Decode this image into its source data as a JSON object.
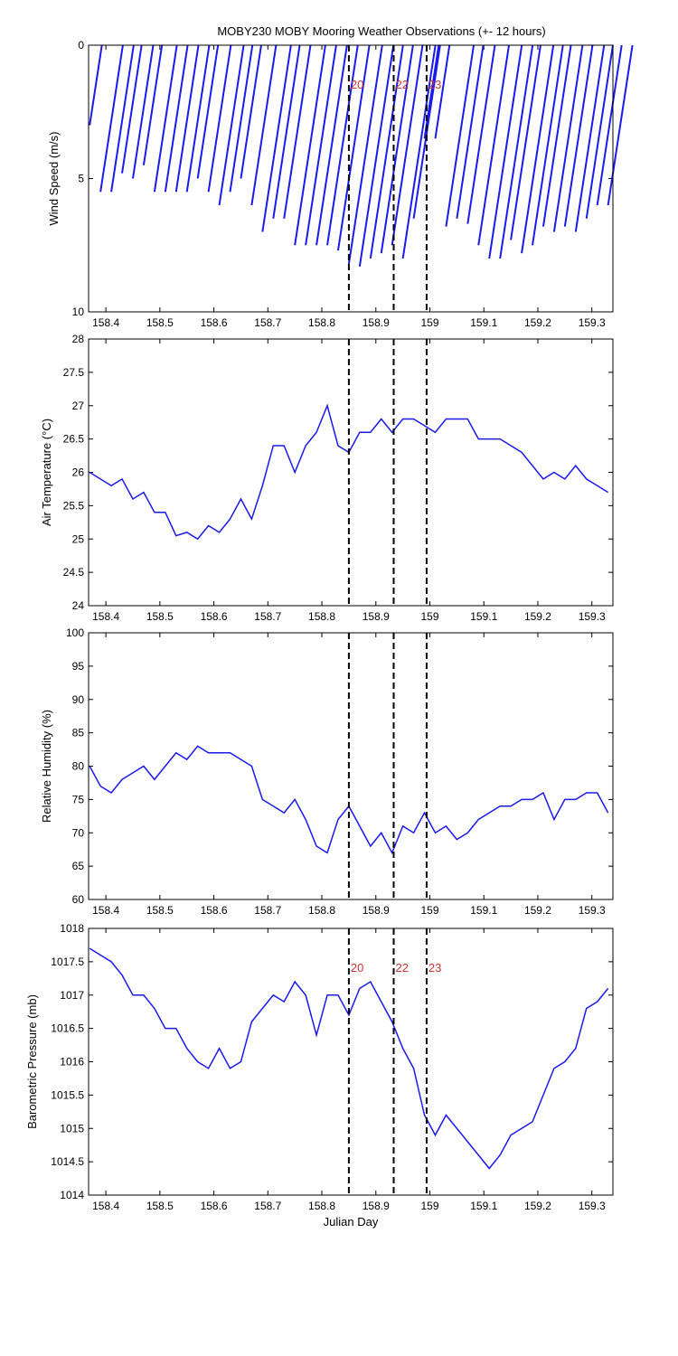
{
  "markers": [
    {
      "x": 158.85,
      "label": "20"
    },
    {
      "x": 158.933,
      "label": "22"
    },
    {
      "x": 158.994,
      "label": "23"
    }
  ],
  "marker_color": "#cc3333",
  "chart_data": [
    {
      "type": "stick",
      "title": "MOBY230 MOBY Mooring Weather Observations (+- 12 hours)",
      "y_label": "Wind Speed (m/s)",
      "color": "#1a1aee",
      "x": [
        158.37,
        158.39,
        158.41,
        158.43,
        158.45,
        158.47,
        158.49,
        158.51,
        158.53,
        158.55,
        158.57,
        158.59,
        158.61,
        158.63,
        158.65,
        158.67,
        158.69,
        158.71,
        158.73,
        158.75,
        158.77,
        158.79,
        158.81,
        158.83,
        158.85,
        158.87,
        158.89,
        158.91,
        158.93,
        158.95,
        158.97,
        158.99,
        159.01,
        159.03,
        159.05,
        159.07,
        159.09,
        159.11,
        159.13,
        159.15,
        159.17,
        159.19,
        159.21,
        159.23,
        159.25,
        159.27,
        159.29,
        159.31,
        159.33
      ],
      "values": [
        3,
        5.5,
        5.5,
        4.8,
        5,
        4.5,
        5.5,
        5.5,
        5.5,
        5.5,
        5,
        5.5,
        6,
        5.5,
        5,
        6,
        7,
        6.5,
        6.5,
        7.5,
        7.5,
        7.5,
        7.5,
        7.7,
        8.2,
        8.3,
        8,
        7.8,
        7.5,
        8,
        6.5,
        3.5,
        3.5,
        6.8,
        6.5,
        6.7,
        7.5,
        8,
        8,
        7.3,
        7.8,
        7.5,
        6.8,
        7,
        6.8,
        7,
        6.5,
        6,
        6
      ],
      "xlim": [
        158.368,
        159.339
      ],
      "xticks": [
        158.4,
        158.5,
        158.6,
        158.7,
        158.8,
        158.9,
        159,
        159.1,
        159.2,
        159.3
      ],
      "ylim": [
        0,
        10
      ],
      "y_inverted": true,
      "yticks": [
        0,
        5,
        10
      ]
    },
    {
      "type": "line",
      "y_label": "Air Temperature (°C)",
      "color": "#1a1aee",
      "x": [
        158.37,
        158.39,
        158.41,
        158.43,
        158.45,
        158.47,
        158.49,
        158.51,
        158.53,
        158.55,
        158.57,
        158.59,
        158.61,
        158.63,
        158.65,
        158.67,
        158.69,
        158.71,
        158.73,
        158.75,
        158.77,
        158.79,
        158.81,
        158.83,
        158.85,
        158.87,
        158.89,
        158.91,
        158.93,
        158.95,
        158.97,
        158.99,
        159.01,
        159.03,
        159.05,
        159.07,
        159.09,
        159.11,
        159.13,
        159.15,
        159.17,
        159.19,
        159.21,
        159.23,
        159.25,
        159.27,
        159.29,
        159.31,
        159.33
      ],
      "values": [
        26.0,
        25.9,
        25.8,
        25.9,
        25.6,
        25.7,
        25.4,
        25.4,
        25.05,
        25.1,
        25.0,
        25.2,
        25.1,
        25.3,
        25.6,
        25.3,
        25.8,
        26.4,
        26.4,
        26.0,
        26.4,
        26.6,
        27.0,
        26.4,
        26.3,
        26.6,
        26.6,
        26.8,
        26.6,
        26.8,
        26.8,
        26.7,
        26.6,
        26.8,
        26.8,
        26.8,
        26.5,
        26.5,
        26.5,
        26.4,
        26.3,
        26.1,
        25.9,
        26.0,
        25.9,
        26.1,
        25.9,
        25.8,
        25.7
      ],
      "xlim": [
        158.368,
        159.339
      ],
      "xticks": [
        158.4,
        158.5,
        158.6,
        158.7,
        158.8,
        158.9,
        159,
        159.1,
        159.2,
        159.3
      ],
      "ylim": [
        24,
        28
      ],
      "yticks": [
        24,
        24.5,
        25,
        25.5,
        26,
        26.5,
        27,
        27.5,
        28
      ]
    },
    {
      "type": "line",
      "y_label": "Relative Humidity (%)",
      "color": "#1a1aee",
      "x": [
        158.37,
        158.39,
        158.41,
        158.43,
        158.45,
        158.47,
        158.49,
        158.51,
        158.53,
        158.55,
        158.57,
        158.59,
        158.61,
        158.63,
        158.65,
        158.67,
        158.69,
        158.71,
        158.73,
        158.75,
        158.77,
        158.79,
        158.81,
        158.83,
        158.85,
        158.87,
        158.89,
        158.91,
        158.93,
        158.95,
        158.97,
        158.99,
        159.01,
        159.03,
        159.05,
        159.07,
        159.09,
        159.11,
        159.13,
        159.15,
        159.17,
        159.19,
        159.21,
        159.23,
        159.25,
        159.27,
        159.29,
        159.31,
        159.33
      ],
      "values": [
        80,
        77,
        76,
        78,
        79,
        80,
        78,
        80,
        82,
        81,
        83,
        82,
        82,
        82,
        81,
        80,
        75,
        74,
        73,
        75,
        72,
        68,
        67,
        72,
        74,
        71,
        68,
        70,
        67,
        71,
        70,
        73,
        70,
        71,
        69,
        70,
        72,
        73,
        74,
        74,
        75,
        75,
        76,
        72,
        75,
        75,
        76,
        76,
        73
      ],
      "xlim": [
        158.368,
        159.339
      ],
      "xticks": [
        158.4,
        158.5,
        158.6,
        158.7,
        158.8,
        158.9,
        159,
        159.1,
        159.2,
        159.3
      ],
      "ylim": [
        60,
        100
      ],
      "yticks": [
        60,
        65,
        70,
        75,
        80,
        85,
        90,
        95,
        100
      ]
    },
    {
      "type": "line",
      "y_label": "Barometric Pressure (mb)",
      "x_label": "Julian Day",
      "color": "#1a1aee",
      "x": [
        158.37,
        158.39,
        158.41,
        158.43,
        158.45,
        158.47,
        158.49,
        158.51,
        158.53,
        158.55,
        158.57,
        158.59,
        158.61,
        158.63,
        158.65,
        158.67,
        158.69,
        158.71,
        158.73,
        158.75,
        158.77,
        158.79,
        158.81,
        158.83,
        158.85,
        158.87,
        158.89,
        158.91,
        158.93,
        158.95,
        158.97,
        158.99,
        159.01,
        159.03,
        159.05,
        159.07,
        159.09,
        159.11,
        159.13,
        159.15,
        159.17,
        159.19,
        159.21,
        159.23,
        159.25,
        159.27,
        159.29,
        159.31,
        159.33
      ],
      "values": [
        1017.7,
        1017.6,
        1017.5,
        1017.3,
        1017.0,
        1017.0,
        1016.8,
        1016.5,
        1016.5,
        1016.2,
        1016.0,
        1015.9,
        1016.2,
        1015.9,
        1016.0,
        1016.6,
        1016.8,
        1017.0,
        1016.9,
        1017.2,
        1017.0,
        1016.4,
        1017.0,
        1017.0,
        1016.7,
        1017.1,
        1017.2,
        1016.9,
        1016.6,
        1016.2,
        1015.9,
        1015.2,
        1014.9,
        1015.2,
        1015.0,
        1014.8,
        1014.6,
        1014.4,
        1014.6,
        1014.9,
        1015.0,
        1015.1,
        1015.5,
        1015.9,
        1016.0,
        1016.2,
        1016.8,
        1016.9,
        1017.1
      ],
      "xlim": [
        158.368,
        159.339
      ],
      "xticks": [
        158.4,
        158.5,
        158.6,
        158.7,
        158.8,
        158.9,
        159,
        159.1,
        159.2,
        159.3
      ],
      "ylim": [
        1014,
        1018
      ],
      "yticks": [
        1014,
        1014.5,
        1015,
        1015.5,
        1016,
        1016.5,
        1017,
        1017.5,
        1018
      ]
    }
  ]
}
